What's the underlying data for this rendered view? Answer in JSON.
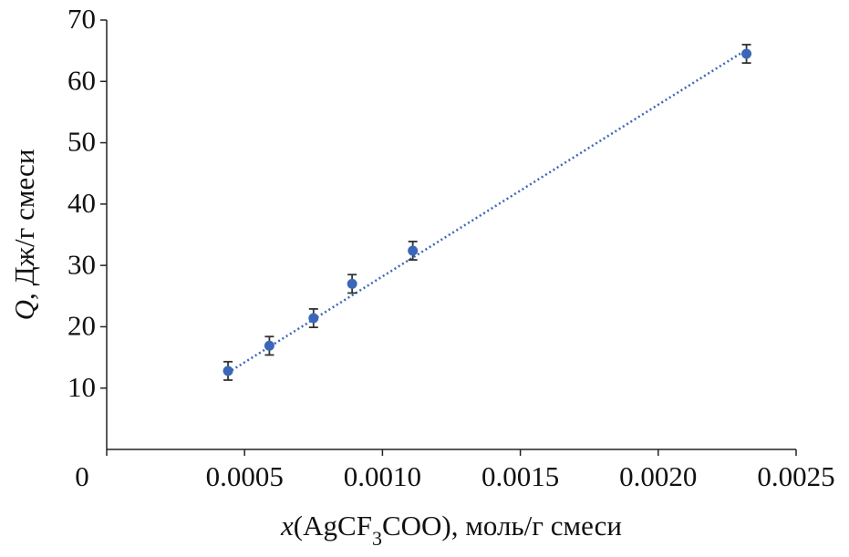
{
  "chart_data": {
    "type": "scatter",
    "xlabel": "x(AgCF3COO), моль/г смеси",
    "ylabel": "Q, Дж/г смеси",
    "series": [
      {
        "color": "#3b67b9",
        "x": [
          0.00044,
          0.00059,
          0.00075,
          0.00089,
          0.00111,
          0.00232
        ],
        "values": [
          12.8,
          16.9,
          21.4,
          27.0,
          32.4,
          64.5
        ],
        "errors": [
          1.5,
          1.5,
          1.5,
          1.5,
          1.5,
          1.5
        ]
      }
    ],
    "trendline": {
      "slope": 28000,
      "intercept": 0.2,
      "color": "#3b67b9",
      "style": "dotted"
    },
    "xlim": [
      0,
      0.0025
    ],
    "xticks": [
      0,
      0.0005,
      {
        "value": 0.001,
        "label": "0.0010"
      },
      0.0015,
      {
        "value": 0.002,
        "label": "0.0020"
      },
      0.0025
    ],
    "ylim": [
      0,
      70
    ],
    "yticks": [
      10,
      20,
      30,
      40,
      50,
      60,
      70
    ]
  }
}
